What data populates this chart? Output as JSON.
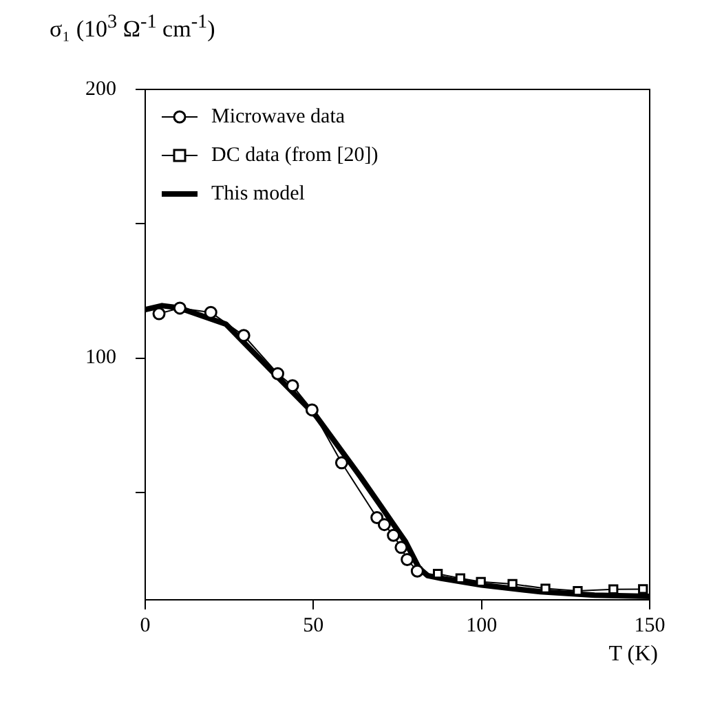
{
  "chart_data": {
    "type": "line",
    "xlabel": "T (K)",
    "ylabel": "σ₁ (10$^{3}$ Ω$^{-1}$ cm$^{-1}$)",
    "xlim": [
      0,
      150
    ],
    "xticks": [
      0,
      50,
      100,
      150
    ],
    "ylim": [
      10,
      200
    ],
    "yticks": [
      {
        "value": 50,
        "label": null
      },
      100,
      {
        "value": 150,
        "label": null
      },
      200
    ],
    "grid": false,
    "legend": "top left",
    "series": [
      {
        "name": "Microwave data",
        "color": "#000000",
        "marker": "circle",
        "x": [
          4.1,
          10.3,
          19.5,
          29.3,
          39.4,
          43.8,
          49.6,
          58.4,
          68.9,
          71.1,
          73.8,
          76.1,
          77.9,
          80.9
        ],
        "values": [
          116.5,
          118.6,
          117,
          108.4,
          94.2,
          89.7,
          80.7,
          61,
          40.6,
          38,
          34,
          29.5,
          25,
          20.7
        ]
      },
      {
        "name": "DC data (from [20])",
        "color": "#000000",
        "marker": "square",
        "x": [
          87,
          93.7,
          99.8,
          109.2,
          119,
          128.6,
          139.2,
          148
        ],
        "values": [
          19.7,
          18,
          16.7,
          15.9,
          14.2,
          13.3,
          13.9,
          14
        ]
      },
      {
        "name": "This model",
        "color": "#000000",
        "marker": "none",
        "x": [
          0,
          5,
          10,
          24,
          37.3,
          50.7,
          64,
          70,
          77.4,
          81.4,
          84,
          88,
          100,
          117.5,
          133.6,
          150
        ],
        "values": [
          118,
          119.5,
          118.7,
          112.6,
          95.6,
          78.6,
          55.8,
          45,
          31.6,
          21.8,
          19,
          18,
          15.5,
          13,
          11.7,
          11.3
        ]
      }
    ]
  }
}
